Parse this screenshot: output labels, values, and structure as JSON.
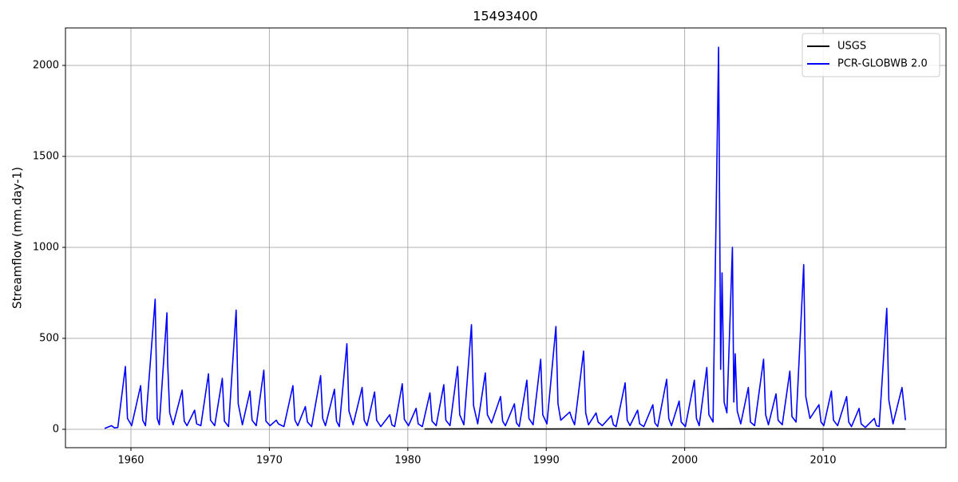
{
  "chart_data": {
    "type": "line",
    "title": "15493400",
    "ylabel": "Streamflow (mm.day-1)",
    "xlim": [
      1955.27,
      2018.88
    ],
    "xticks": [
      1960,
      1970,
      1980,
      1990,
      2000,
      2010
    ],
    "ylim": [
      -101,
      2206
    ],
    "yticks": [
      0,
      500,
      1000,
      1500,
      2000
    ],
    "grid": true,
    "legend": "upper right",
    "series": [
      {
        "name": "USGS",
        "color": "#000000",
        "x": [
          1981.2,
          1985,
          1990,
          1995,
          2000,
          2005,
          2010,
          2015.95
        ],
        "values": [
          2,
          3,
          2,
          3,
          2,
          3,
          2,
          2
        ]
      },
      {
        "name": "PCR-GLOBWB 2.0",
        "color": "#0000ff",
        "x": [
          1958.1,
          1958.6,
          1958.8,
          1959.05,
          1959.6,
          1959.75,
          1960.05,
          1960.7,
          1960.85,
          1961.05,
          1961.75,
          1961.9,
          1962.05,
          1962.6,
          1962.65,
          1962.8,
          1963.05,
          1963.7,
          1963.85,
          1964.05,
          1964.6,
          1964.75,
          1965.05,
          1965.6,
          1965.75,
          1966.05,
          1966.6,
          1966.75,
          1967.05,
          1967.6,
          1967.75,
          1968.05,
          1968.6,
          1968.75,
          1969.05,
          1969.6,
          1969.75,
          1970.05,
          1970.5,
          1970.65,
          1971.05,
          1971.7,
          1971.85,
          1972.05,
          1972.6,
          1972.75,
          1973.05,
          1973.7,
          1973.85,
          1974.05,
          1974.7,
          1974.85,
          1975.05,
          1975.6,
          1975.75,
          1976.05,
          1976.7,
          1976.85,
          1977.05,
          1977.6,
          1977.75,
          1978.05,
          1978.7,
          1978.85,
          1979.05,
          1979.6,
          1979.75,
          1980.05,
          1980.6,
          1980.75,
          1981.05,
          1981.6,
          1981.75,
          1982.05,
          1982.6,
          1982.75,
          1983.05,
          1983.6,
          1983.75,
          1984.05,
          1984.6,
          1984.75,
          1985.05,
          1985.6,
          1985.75,
          1986.05,
          1986.7,
          1986.85,
          1987.05,
          1987.7,
          1987.85,
          1988.05,
          1988.6,
          1988.75,
          1989.05,
          1989.6,
          1989.75,
          1990.05,
          1990.7,
          1990.85,
          1991.05,
          1991.7,
          1991.85,
          1992.05,
          1992.7,
          1992.85,
          1993.05,
          1993.6,
          1993.75,
          1994.05,
          1994.7,
          1994.85,
          1995.05,
          1995.7,
          1995.85,
          1996.05,
          1996.6,
          1996.75,
          1997.05,
          1997.7,
          1997.85,
          1998.05,
          1998.7,
          1998.85,
          1999.05,
          1999.6,
          1999.75,
          2000.05,
          2000.7,
          2000.85,
          2001.05,
          2001.6,
          2001.75,
          2002.05,
          2002.45,
          2002.6,
          2002.7,
          2002.85,
          2003.05,
          2003.45,
          2003.55,
          2003.65,
          2003.8,
          2004.05,
          2004.6,
          2004.75,
          2005.05,
          2005.7,
          2005.85,
          2006.05,
          2006.6,
          2006.75,
          2007.05,
          2007.6,
          2007.75,
          2008.05,
          2008.6,
          2008.75,
          2009.05,
          2009.7,
          2009.85,
          2010.05,
          2010.6,
          2010.75,
          2011.05,
          2011.7,
          2011.85,
          2012.05,
          2012.6,
          2012.75,
          2013.05,
          2013.7,
          2013.85,
          2014.05,
          2014.6,
          2014.75,
          2015.05,
          2015.7,
          2015.95
        ],
        "values": [
          5,
          20,
          8,
          10,
          345,
          60,
          20,
          240,
          50,
          20,
          715,
          60,
          25,
          640,
          370,
          90,
          25,
          215,
          45,
          20,
          105,
          30,
          20,
          305,
          50,
          20,
          280,
          45,
          15,
          655,
          140,
          25,
          210,
          50,
          20,
          325,
          45,
          20,
          50,
          30,
          15,
          240,
          50,
          20,
          125,
          40,
          15,
          295,
          60,
          20,
          220,
          45,
          15,
          470,
          100,
          25,
          230,
          50,
          20,
          205,
          50,
          15,
          80,
          25,
          15,
          250,
          55,
          20,
          115,
          30,
          15,
          200,
          45,
          20,
          245,
          50,
          20,
          345,
          80,
          25,
          575,
          130,
          30,
          310,
          80,
          35,
          180,
          45,
          20,
          140,
          35,
          15,
          270,
          60,
          25,
          385,
          80,
          30,
          565,
          140,
          50,
          95,
          60,
          25,
          430,
          90,
          25,
          90,
          40,
          20,
          75,
          25,
          15,
          255,
          50,
          20,
          105,
          30,
          15,
          135,
          35,
          15,
          275,
          60,
          20,
          155,
          40,
          15,
          270,
          60,
          20,
          340,
          80,
          40,
          2100,
          330,
          860,
          150,
          90,
          1000,
          150,
          415,
          100,
          30,
          230,
          40,
          20,
          385,
          80,
          25,
          195,
          50,
          25,
          320,
          70,
          40,
          905,
          180,
          60,
          135,
          40,
          20,
          210,
          50,
          20,
          180,
          40,
          15,
          115,
          30,
          10,
          60,
          20,
          15,
          665,
          160,
          30,
          230,
          50
        ]
      }
    ]
  }
}
